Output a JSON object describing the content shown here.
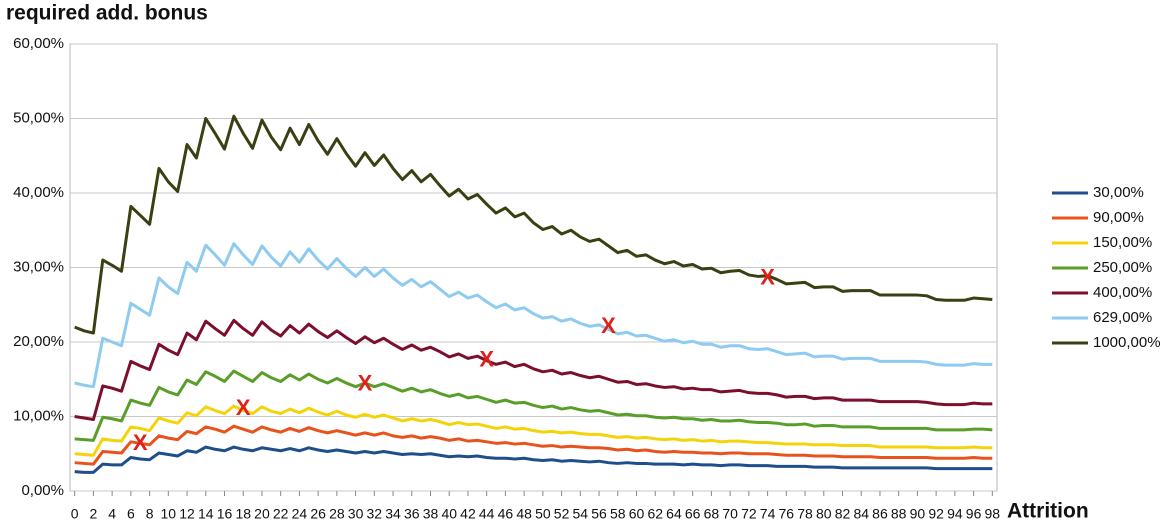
{
  "chart_data": {
    "type": "line",
    "title": "required add. bonus",
    "x_label": "Attrition",
    "x": [
      0,
      1,
      2,
      3,
      4,
      5,
      6,
      7,
      8,
      9,
      10,
      11,
      12,
      13,
      14,
      15,
      16,
      17,
      18,
      19,
      20,
      21,
      22,
      23,
      24,
      25,
      26,
      27,
      28,
      29,
      30,
      31,
      32,
      33,
      34,
      35,
      36,
      37,
      38,
      39,
      40,
      41,
      42,
      43,
      44,
      45,
      46,
      47,
      48,
      49,
      50,
      51,
      52,
      53,
      54,
      55,
      56,
      57,
      58,
      59,
      60,
      61,
      62,
      63,
      64,
      65,
      66,
      67,
      68,
      69,
      70,
      71,
      72,
      73,
      74,
      75,
      76,
      77,
      78,
      79,
      80,
      81,
      82,
      83,
      84,
      85,
      86,
      87,
      88,
      89,
      90,
      91,
      92,
      93,
      94,
      95,
      96,
      97,
      98
    ],
    "xlim": [
      -0.5,
      98.5
    ],
    "xticks": [
      0,
      2,
      4,
      6,
      8,
      10,
      12,
      14,
      16,
      18,
      20,
      22,
      24,
      26,
      28,
      30,
      32,
      34,
      36,
      38,
      40,
      42,
      44,
      46,
      48,
      50,
      52,
      54,
      56,
      58,
      60,
      62,
      64,
      66,
      68,
      70,
      72,
      74,
      76,
      78,
      80,
      82,
      84,
      86,
      88,
      90,
      92,
      94,
      96,
      98
    ],
    "ylim": [
      0,
      60
    ],
    "yticks": [
      {
        "value": 0,
        "label": "0,00%"
      },
      {
        "value": 10,
        "label": "10,00%"
      },
      {
        "value": 20,
        "label": "20,00%"
      },
      {
        "value": 30,
        "label": "30,00%"
      },
      {
        "value": 40,
        "label": "40,00%"
      },
      {
        "value": 50,
        "label": "50,00%"
      },
      {
        "value": 60,
        "label": "60,00%"
      }
    ],
    "grid": true,
    "legend": "right",
    "series": [
      {
        "name": "30,00%",
        "color": "#1f4e8c",
        "values": [
          2.6,
          2.5,
          2.5,
          3.6,
          3.5,
          3.5,
          4.5,
          4.3,
          4.2,
          5.1,
          4.9,
          4.7,
          5.4,
          5.2,
          5.9,
          5.6,
          5.4,
          5.9,
          5.6,
          5.4,
          5.8,
          5.6,
          5.4,
          5.7,
          5.4,
          5.8,
          5.5,
          5.3,
          5.5,
          5.3,
          5.1,
          5.3,
          5.1,
          5.3,
          5.1,
          4.9,
          5.0,
          4.9,
          5.0,
          4.8,
          4.6,
          4.7,
          4.6,
          4.7,
          4.5,
          4.4,
          4.4,
          4.3,
          4.4,
          4.2,
          4.1,
          4.2,
          4.0,
          4.1,
          4.0,
          3.9,
          4.0,
          3.8,
          3.7,
          3.8,
          3.7,
          3.7,
          3.6,
          3.6,
          3.6,
          3.5,
          3.6,
          3.5,
          3.5,
          3.4,
          3.5,
          3.5,
          3.4,
          3.4,
          3.4,
          3.3,
          3.3,
          3.3,
          3.3,
          3.2,
          3.2,
          3.2,
          3.1,
          3.1,
          3.1,
          3.1,
          3.1,
          3.1,
          3.1,
          3.1,
          3.1,
          3.1,
          3.0,
          3.0,
          3.0,
          3.0,
          3.0,
          3.0,
          3.0
        ]
      },
      {
        "name": "90,00%",
        "color": "#e8531d",
        "values": [
          3.8,
          3.7,
          3.6,
          5.3,
          5.2,
          5.1,
          6.6,
          6.4,
          6.2,
          7.4,
          7.1,
          6.9,
          8.0,
          7.7,
          8.6,
          8.3,
          7.9,
          8.7,
          8.3,
          7.9,
          8.6,
          8.2,
          7.9,
          8.4,
          8.0,
          8.5,
          8.1,
          7.8,
          8.1,
          7.8,
          7.5,
          7.8,
          7.5,
          7.8,
          7.4,
          7.2,
          7.4,
          7.1,
          7.3,
          7.1,
          6.8,
          7.0,
          6.7,
          6.8,
          6.6,
          6.4,
          6.5,
          6.3,
          6.4,
          6.2,
          6.0,
          6.1,
          5.9,
          6.0,
          5.9,
          5.8,
          5.8,
          5.7,
          5.5,
          5.6,
          5.4,
          5.5,
          5.3,
          5.2,
          5.3,
          5.2,
          5.2,
          5.1,
          5.1,
          5.0,
          5.1,
          5.1,
          5.0,
          5.0,
          5.0,
          4.9,
          4.8,
          4.8,
          4.8,
          4.7,
          4.7,
          4.7,
          4.6,
          4.6,
          4.6,
          4.6,
          4.5,
          4.5,
          4.5,
          4.5,
          4.5,
          4.5,
          4.4,
          4.4,
          4.4,
          4.4,
          4.5,
          4.4,
          4.4
        ]
      },
      {
        "name": "150,00%",
        "color": "#f5d30a",
        "values": [
          5.0,
          4.9,
          4.8,
          7.0,
          6.8,
          6.7,
          8.6,
          8.4,
          8.1,
          9.8,
          9.4,
          9.1,
          10.5,
          10.1,
          11.3,
          10.8,
          10.4,
          11.4,
          10.8,
          10.4,
          11.3,
          10.7,
          10.4,
          11.0,
          10.5,
          11.1,
          10.6,
          10.2,
          10.7,
          10.2,
          9.9,
          10.3,
          9.9,
          10.2,
          9.8,
          9.4,
          9.7,
          9.4,
          9.6,
          9.3,
          8.9,
          9.2,
          8.9,
          9.0,
          8.7,
          8.4,
          8.6,
          8.3,
          8.4,
          8.1,
          7.9,
          8.0,
          7.8,
          7.9,
          7.7,
          7.6,
          7.6,
          7.4,
          7.2,
          7.3,
          7.1,
          7.2,
          7.0,
          6.9,
          7.0,
          6.8,
          6.9,
          6.7,
          6.8,
          6.6,
          6.7,
          6.7,
          6.6,
          6.5,
          6.5,
          6.4,
          6.3,
          6.3,
          6.3,
          6.2,
          6.2,
          6.2,
          6.1,
          6.1,
          6.1,
          6.1,
          5.9,
          5.9,
          5.9,
          5.9,
          5.9,
          5.9,
          5.8,
          5.8,
          5.8,
          5.8,
          5.9,
          5.8,
          5.8
        ]
      },
      {
        "name": "250,00%",
        "color": "#5a9e2a",
        "values": [
          7.0,
          6.9,
          6.8,
          9.9,
          9.7,
          9.4,
          12.2,
          11.8,
          11.5,
          13.9,
          13.3,
          12.9,
          14.9,
          14.3,
          16.0,
          15.4,
          14.7,
          16.1,
          15.4,
          14.7,
          15.9,
          15.2,
          14.7,
          15.6,
          14.9,
          15.7,
          15.0,
          14.5,
          15.1,
          14.5,
          14.0,
          14.5,
          14.0,
          14.4,
          13.9,
          13.4,
          13.8,
          13.3,
          13.6,
          13.1,
          12.7,
          13.0,
          12.5,
          12.7,
          12.3,
          11.9,
          12.2,
          11.8,
          11.9,
          11.5,
          11.2,
          11.4,
          11.0,
          11.2,
          10.9,
          10.7,
          10.8,
          10.5,
          10.2,
          10.3,
          10.1,
          10.1,
          9.9,
          9.8,
          9.9,
          9.7,
          9.7,
          9.5,
          9.6,
          9.4,
          9.4,
          9.5,
          9.3,
          9.2,
          9.2,
          9.1,
          8.9,
          8.9,
          9.0,
          8.7,
          8.8,
          8.8,
          8.6,
          8.6,
          8.6,
          8.6,
          8.4,
          8.4,
          8.4,
          8.4,
          8.4,
          8.4,
          8.2,
          8.2,
          8.2,
          8.2,
          8.3,
          8.3,
          8.2
        ]
      },
      {
        "name": "400,00%",
        "color": "#7b0f2c",
        "values": [
          10.0,
          9.8,
          9.6,
          14.1,
          13.8,
          13.4,
          17.4,
          16.8,
          16.3,
          19.7,
          18.9,
          18.3,
          21.2,
          20.3,
          22.8,
          21.8,
          20.9,
          22.9,
          21.8,
          20.9,
          22.7,
          21.6,
          20.8,
          22.2,
          21.2,
          22.4,
          21.4,
          20.6,
          21.5,
          20.6,
          19.8,
          20.7,
          19.9,
          20.5,
          19.7,
          19.0,
          19.6,
          18.9,
          19.3,
          18.7,
          18.0,
          18.4,
          17.8,
          18.1,
          17.5,
          17.0,
          17.3,
          16.7,
          17.0,
          16.4,
          16.0,
          16.2,
          15.7,
          15.9,
          15.5,
          15.2,
          15.4,
          15.0,
          14.6,
          14.7,
          14.3,
          14.4,
          14.1,
          13.9,
          14.0,
          13.7,
          13.8,
          13.6,
          13.6,
          13.3,
          13.4,
          13.5,
          13.2,
          13.1,
          13.1,
          12.9,
          12.6,
          12.7,
          12.7,
          12.4,
          12.5,
          12.5,
          12.2,
          12.2,
          12.2,
          12.2,
          12.0,
          12.0,
          12.0,
          12.0,
          12.0,
          11.9,
          11.7,
          11.6,
          11.6,
          11.6,
          11.8,
          11.7,
          11.7
        ]
      },
      {
        "name": "629,00%",
        "color": "#8ecbf0",
        "values": [
          14.5,
          14.2,
          14.0,
          20.5,
          20.0,
          19.5,
          25.2,
          24.4,
          23.6,
          28.6,
          27.4,
          26.5,
          30.7,
          29.5,
          33.0,
          31.7,
          30.3,
          33.2,
          31.7,
          30.4,
          32.9,
          31.4,
          30.2,
          32.1,
          30.7,
          32.5,
          31.0,
          29.8,
          31.2,
          29.9,
          28.8,
          30.0,
          28.8,
          29.8,
          28.6,
          27.6,
          28.4,
          27.4,
          28.1,
          27.1,
          26.1,
          26.7,
          25.9,
          26.3,
          25.4,
          24.6,
          25.1,
          24.3,
          24.6,
          23.8,
          23.2,
          23.4,
          22.8,
          23.1,
          22.5,
          22.1,
          22.3,
          21.7,
          21.1,
          21.3,
          20.8,
          20.9,
          20.5,
          20.1,
          20.3,
          19.9,
          20.1,
          19.7,
          19.7,
          19.3,
          19.5,
          19.5,
          19.1,
          19.0,
          19.1,
          18.7,
          18.3,
          18.4,
          18.5,
          18.0,
          18.1,
          18.1,
          17.7,
          17.8,
          17.8,
          17.8,
          17.4,
          17.4,
          17.4,
          17.4,
          17.4,
          17.3,
          17.0,
          16.9,
          16.9,
          16.9,
          17.1,
          17.0,
          17.0
        ]
      },
      {
        "name": "1000,00%",
        "color": "#3b3f12",
        "values": [
          22,
          21.5,
          21.2,
          31,
          30.3,
          29.5,
          38.2,
          37,
          35.8,
          43.3,
          41.5,
          40.2,
          46.5,
          44.7,
          50,
          48,
          45.9,
          50.3,
          48,
          46,
          49.8,
          47.5,
          45.8,
          48.7,
          46.5,
          49.2,
          47,
          45.2,
          47.3,
          45.3,
          43.6,
          45.4,
          43.7,
          45.1,
          43.3,
          41.8,
          43,
          41.5,
          42.5,
          41,
          39.6,
          40.5,
          39.2,
          39.8,
          38.5,
          37.3,
          38,
          36.8,
          37.3,
          36,
          35.1,
          35.5,
          34.5,
          35,
          34.1,
          33.5,
          33.8,
          32.9,
          32,
          32.3,
          31.5,
          31.7,
          31,
          30.5,
          30.8,
          30.2,
          30.4,
          29.8,
          29.9,
          29.3,
          29.5,
          29.6,
          29,
          28.8,
          28.9,
          28.4,
          27.8,
          27.9,
          28,
          27.3,
          27.4,
          27.4,
          26.8,
          26.9,
          26.9,
          26.9,
          26.3,
          26.3,
          26.3,
          26.3,
          26.3,
          26.2,
          25.7,
          25.6,
          25.6,
          25.6,
          25.9,
          25.8,
          25.7
        ]
      }
    ],
    "markers": {
      "label": "X",
      "color": "#e0201b",
      "points": [
        {
          "x": 7,
          "y": 6.3
        },
        {
          "x": 18,
          "y": 11
        },
        {
          "x": 31,
          "y": 14.3
        },
        {
          "x": 44,
          "y": 17.5
        },
        {
          "x": 57,
          "y": 22
        },
        {
          "x": 74,
          "y": 28.5
        }
      ]
    }
  }
}
